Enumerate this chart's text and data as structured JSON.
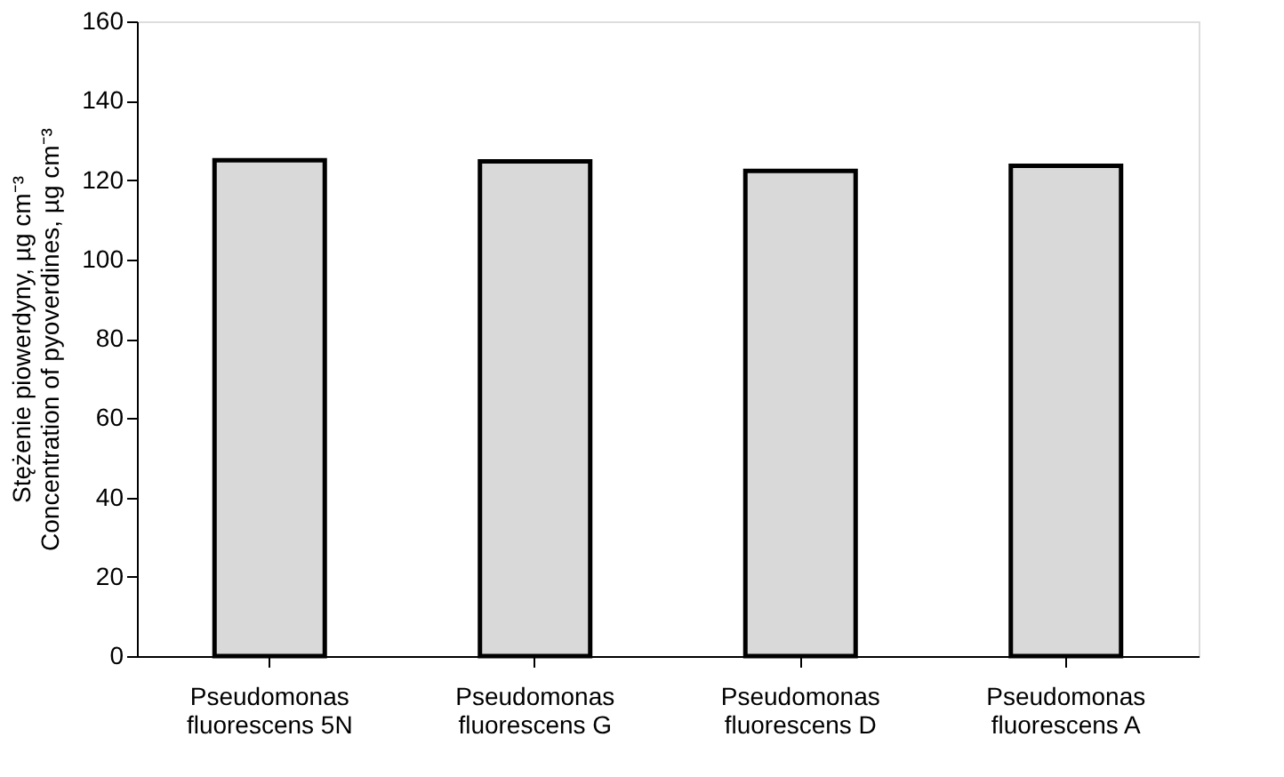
{
  "chart_data": {
    "type": "bar",
    "categories": [
      "Pseudomonas fluorescens 5N",
      "Pseudomonas fluorescens G",
      "Pseudomonas fluorescens D",
      "Pseudomonas fluorescens A"
    ],
    "values": [
      125,
      124.7,
      122.3,
      123.6
    ],
    "color": "#d9d9d9",
    "ylabel": "Stężenie piowerdyny, µg cm⁻³\nConcentration of pyoverdines, µg cm⁻³",
    "ylim": [
      0,
      160
    ],
    "yticks": [
      0,
      20,
      40,
      60,
      80,
      100,
      120,
      140,
      160
    ],
    "grid": false
  }
}
